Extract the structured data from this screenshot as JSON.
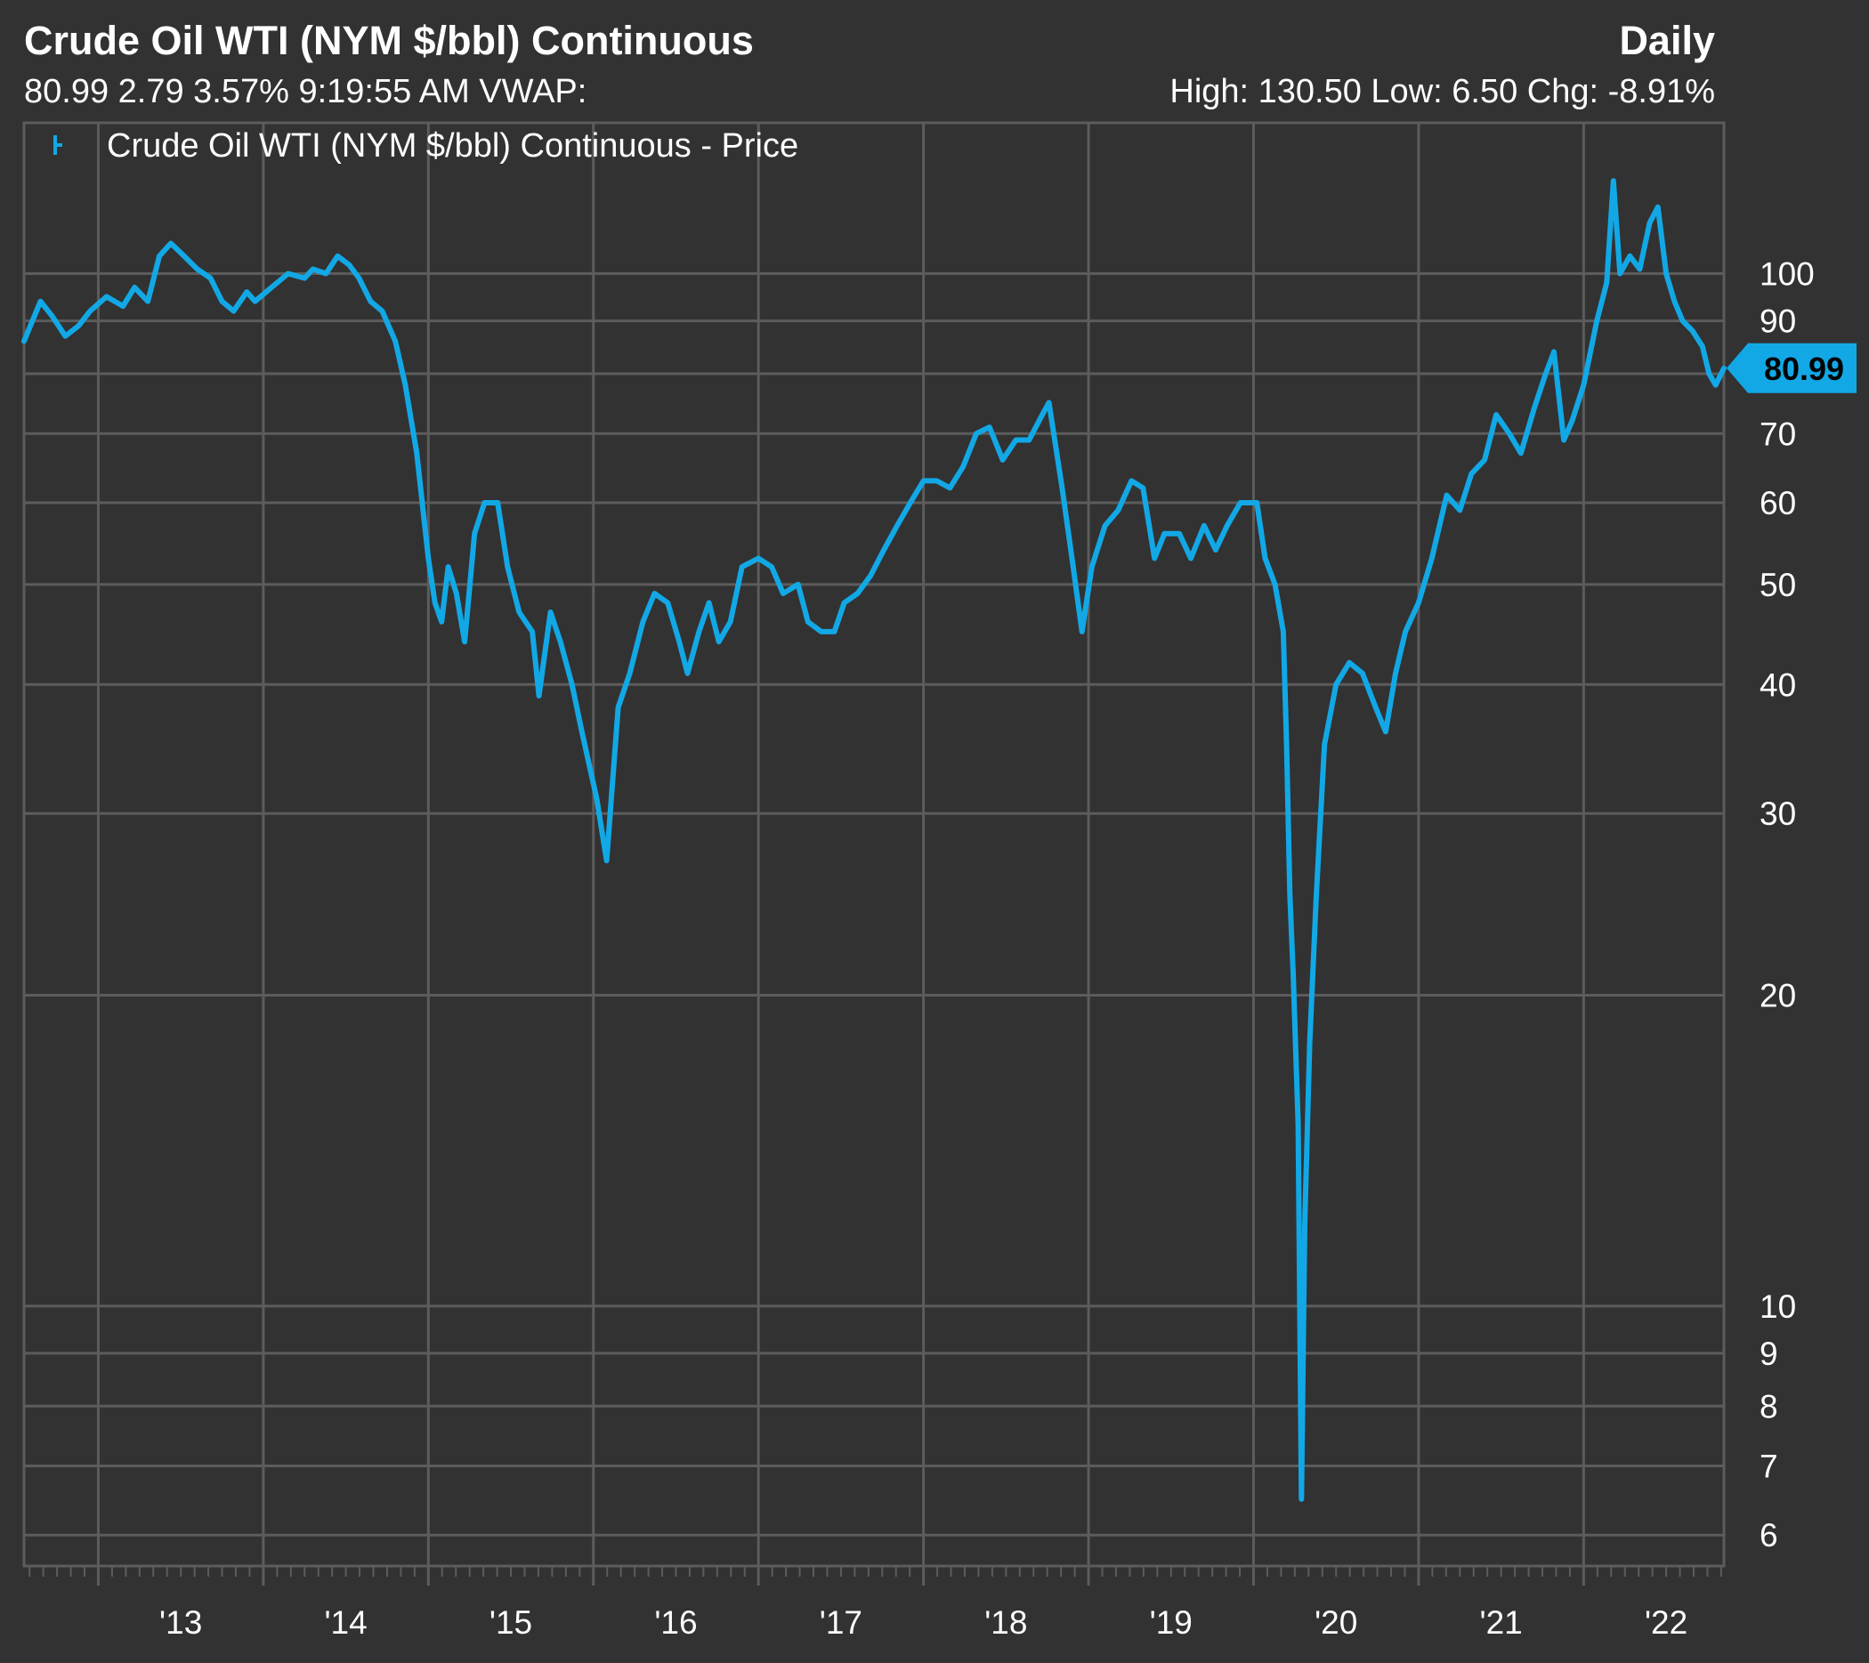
{
  "header": {
    "title": "Crude Oil WTI (NYM $/bbl) Continuous",
    "period": "Daily",
    "quote": "80.99 2.79 3.57% 9:19:55 AM VWAP:",
    "stats": "High: 130.50 Low: 6.50 Chg: -8.91%"
  },
  "colors": {
    "background": "#323232",
    "grid": "#5c5c5c",
    "line": "#12a8e6",
    "text": "#ffffff",
    "badge_text": "#000000"
  },
  "chart_data": {
    "type": "line",
    "title": "Crude Oil WTI (NYM $/bbl) Continuous",
    "legend": "Crude Oil WTI (NYM $/bbl) Continuous - Price",
    "legend_position": "top-left",
    "y_scale": "log",
    "ylim": [
      5.6,
      140
    ],
    "xlim": [
      2012.55,
      2022.85
    ],
    "y_ticks": [
      6,
      7,
      8,
      9,
      10,
      20,
      30,
      40,
      50,
      60,
      70,
      80,
      90,
      100
    ],
    "y_tick_labels": [
      "6",
      "7",
      "8",
      "9",
      "10",
      "20",
      "30",
      "40",
      "50",
      "60",
      "70",
      "",
      "90",
      "100"
    ],
    "x_tick_labels": [
      "'13",
      "'14",
      "'15",
      "'16",
      "'17",
      "'18",
      "'19",
      "'20",
      "'21",
      "'22"
    ],
    "x_year_boundaries": [
      2013,
      2014,
      2015,
      2016,
      2017,
      2018,
      2019,
      2020,
      2021,
      2022
    ],
    "last_value": 80.99,
    "last_value_label": "80.99",
    "series": [
      {
        "name": "Crude Oil WTI (NYM $/bbl) Continuous - Price",
        "points": [
          [
            2012.55,
            86
          ],
          [
            2012.65,
            94
          ],
          [
            2012.72,
            91
          ],
          [
            2012.8,
            87
          ],
          [
            2012.88,
            89
          ],
          [
            2012.95,
            92
          ],
          [
            2013.05,
            95
          ],
          [
            2013.15,
            93
          ],
          [
            2013.22,
            97
          ],
          [
            2013.3,
            94
          ],
          [
            2013.37,
            104
          ],
          [
            2013.44,
            107
          ],
          [
            2013.52,
            104
          ],
          [
            2013.6,
            101
          ],
          [
            2013.68,
            99
          ],
          [
            2013.75,
            94
          ],
          [
            2013.82,
            92
          ],
          [
            2013.9,
            96
          ],
          [
            2013.95,
            94
          ],
          [
            2014.05,
            97
          ],
          [
            2014.15,
            100
          ],
          [
            2014.25,
            99
          ],
          [
            2014.3,
            101
          ],
          [
            2014.38,
            100
          ],
          [
            2014.45,
            104
          ],
          [
            2014.52,
            102
          ],
          [
            2014.58,
            99
          ],
          [
            2014.65,
            94
          ],
          [
            2014.72,
            92
          ],
          [
            2014.8,
            86
          ],
          [
            2014.86,
            78
          ],
          [
            2014.93,
            67
          ],
          [
            2015.0,
            53
          ],
          [
            2015.04,
            48
          ],
          [
            2015.08,
            46
          ],
          [
            2015.12,
            52
          ],
          [
            2015.17,
            49
          ],
          [
            2015.22,
            44
          ],
          [
            2015.28,
            56
          ],
          [
            2015.34,
            60
          ],
          [
            2015.42,
            60
          ],
          [
            2015.48,
            52
          ],
          [
            2015.55,
            47
          ],
          [
            2015.63,
            45
          ],
          [
            2015.67,
            39
          ],
          [
            2015.74,
            47
          ],
          [
            2015.8,
            44
          ],
          [
            2015.87,
            40
          ],
          [
            2015.93,
            36
          ],
          [
            2016.02,
            31
          ],
          [
            2016.08,
            27
          ],
          [
            2016.15,
            38
          ],
          [
            2016.22,
            41
          ],
          [
            2016.3,
            46
          ],
          [
            2016.37,
            49
          ],
          [
            2016.45,
            48
          ],
          [
            2016.52,
            44
          ],
          [
            2016.57,
            41
          ],
          [
            2016.64,
            45
          ],
          [
            2016.7,
            48
          ],
          [
            2016.76,
            44
          ],
          [
            2016.83,
            46
          ],
          [
            2016.9,
            52
          ],
          [
            2017.0,
            53
          ],
          [
            2017.08,
            52
          ],
          [
            2017.15,
            49
          ],
          [
            2017.24,
            50
          ],
          [
            2017.3,
            46
          ],
          [
            2017.38,
            45
          ],
          [
            2017.46,
            45
          ],
          [
            2017.52,
            48
          ],
          [
            2017.6,
            49
          ],
          [
            2017.68,
            51
          ],
          [
            2017.76,
            54
          ],
          [
            2017.84,
            57
          ],
          [
            2017.92,
            60
          ],
          [
            2018.0,
            63
          ],
          [
            2018.08,
            63
          ],
          [
            2018.16,
            62
          ],
          [
            2018.24,
            65
          ],
          [
            2018.32,
            70
          ],
          [
            2018.4,
            71
          ],
          [
            2018.48,
            66
          ],
          [
            2018.56,
            69
          ],
          [
            2018.64,
            69
          ],
          [
            2018.72,
            73
          ],
          [
            2018.76,
            75
          ],
          [
            2018.84,
            62
          ],
          [
            2018.9,
            53
          ],
          [
            2018.96,
            45
          ],
          [
            2019.02,
            52
          ],
          [
            2019.1,
            57
          ],
          [
            2019.18,
            59
          ],
          [
            2019.26,
            63
          ],
          [
            2019.33,
            62
          ],
          [
            2019.4,
            53
          ],
          [
            2019.46,
            56
          ],
          [
            2019.55,
            56
          ],
          [
            2019.62,
            53
          ],
          [
            2019.7,
            57
          ],
          [
            2019.77,
            54
          ],
          [
            2019.84,
            57
          ],
          [
            2019.92,
            60
          ],
          [
            2020.02,
            60
          ],
          [
            2020.07,
            53
          ],
          [
            2020.13,
            50
          ],
          [
            2020.18,
            45
          ],
          [
            2020.2,
            35
          ],
          [
            2020.22,
            25
          ],
          [
            2020.24,
            21
          ],
          [
            2020.27,
            15
          ],
          [
            2020.29,
            6.5
          ],
          [
            2020.31,
            12
          ],
          [
            2020.34,
            18
          ],
          [
            2020.38,
            25
          ],
          [
            2020.43,
            35
          ],
          [
            2020.5,
            40
          ],
          [
            2020.58,
            42
          ],
          [
            2020.66,
            41
          ],
          [
            2020.74,
            38
          ],
          [
            2020.8,
            36
          ],
          [
            2020.86,
            41
          ],
          [
            2020.92,
            45
          ],
          [
            2021.0,
            48
          ],
          [
            2021.08,
            53
          ],
          [
            2021.17,
            61
          ],
          [
            2021.25,
            59
          ],
          [
            2021.32,
            64
          ],
          [
            2021.4,
            66
          ],
          [
            2021.47,
            73
          ],
          [
            2021.55,
            70
          ],
          [
            2021.62,
            67
          ],
          [
            2021.7,
            74
          ],
          [
            2021.77,
            80
          ],
          [
            2021.82,
            84
          ],
          [
            2021.88,
            69
          ],
          [
            2021.93,
            72
          ],
          [
            2022.0,
            78
          ],
          [
            2022.08,
            90
          ],
          [
            2022.14,
            98
          ],
          [
            2022.18,
            123
          ],
          [
            2022.22,
            100
          ],
          [
            2022.28,
            104
          ],
          [
            2022.34,
            101
          ],
          [
            2022.4,
            112
          ],
          [
            2022.45,
            116
          ],
          [
            2022.5,
            100
          ],
          [
            2022.55,
            94
          ],
          [
            2022.6,
            90
          ],
          [
            2022.66,
            88
          ],
          [
            2022.72,
            85
          ],
          [
            2022.76,
            80
          ],
          [
            2022.8,
            78
          ],
          [
            2022.85,
            80.99
          ]
        ]
      }
    ]
  }
}
